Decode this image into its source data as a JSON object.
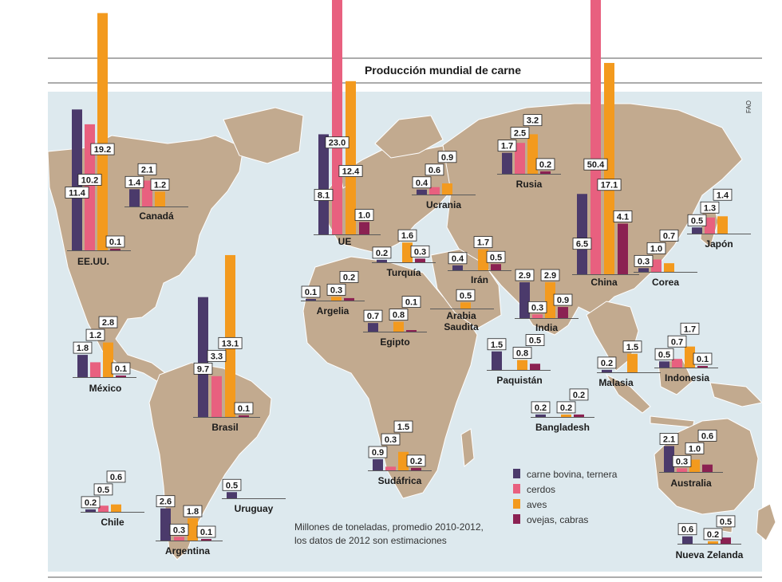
{
  "chart_data": {
    "type": "bar",
    "title": "Producción mundial de carne",
    "source": "FAO",
    "note_lines": [
      "Millones de toneladas, promedio 2010-2012,",
      "los datos de 2012 son estimaciones"
    ],
    "legend_position": "bottom-right",
    "series": [
      {
        "key": "bovina",
        "name": "carne bovina, ternera",
        "color": "#4b3a6b"
      },
      {
        "key": "cerdos",
        "name": "cerdos",
        "color": "#e8607f"
      },
      {
        "key": "aves",
        "name": "aves",
        "color": "#f39a1e"
      },
      {
        "key": "ovejas",
        "name": "ovejas, cabras",
        "color": "#8b2152"
      }
    ],
    "countries": [
      {
        "name": "EE.UU.",
        "values": [
          11.4,
          10.2,
          19.2,
          0.1
        ],
        "labels": [
          "11.4",
          "10.2",
          "19.2",
          "0.1"
        ]
      },
      {
        "name": "Canadá",
        "values": [
          1.4,
          2.1,
          1.2,
          null
        ],
        "labels": [
          "1.4",
          "2.1",
          "1.2",
          ""
        ]
      },
      {
        "name": "México",
        "values": [
          1.8,
          1.2,
          2.8,
          0.1
        ],
        "labels": [
          "1.8",
          "1.2",
          "2.8",
          "0.1"
        ]
      },
      {
        "name": "Brasil",
        "values": [
          9.7,
          3.3,
          13.1,
          0.1
        ],
        "labels": [
          "9.7",
          "3.3",
          "13.1",
          "0.1"
        ]
      },
      {
        "name": "Uruguay",
        "values": [
          0.5,
          null,
          null,
          null
        ],
        "labels": [
          "0.5",
          "",
          "",
          ""
        ]
      },
      {
        "name": "Chile",
        "values": [
          0.2,
          0.5,
          0.6,
          null
        ],
        "labels": [
          "0.2",
          "0.5",
          "0.6",
          ""
        ]
      },
      {
        "name": "Argentina",
        "values": [
          2.6,
          0.3,
          1.8,
          0.1
        ],
        "labels": [
          "2.6",
          "0.3",
          "1.8",
          "0.1"
        ]
      },
      {
        "name": "UE",
        "values": [
          8.1,
          23.0,
          12.4,
          1.0
        ],
        "labels": [
          "8.1",
          "23.0",
          "12.4",
          "1.0"
        ]
      },
      {
        "name": "Ucrania",
        "values": [
          0.4,
          0.6,
          0.9,
          null
        ],
        "labels": [
          "0.4",
          "0.6",
          "0.9",
          ""
        ]
      },
      {
        "name": "Rusia",
        "values": [
          1.7,
          2.5,
          3.2,
          0.2
        ],
        "labels": [
          "1.7",
          "2.5",
          "3.2",
          "0.2"
        ]
      },
      {
        "name": "Turquía",
        "values": [
          0.2,
          null,
          1.6,
          0.3
        ],
        "labels": [
          "0.2",
          "",
          "1.6",
          "0.3"
        ]
      },
      {
        "name": "Argelia",
        "values": [
          0.1,
          null,
          0.3,
          0.2
        ],
        "labels": [
          "0.1",
          "",
          "0.3",
          "0.2"
        ]
      },
      {
        "name": "Egipto",
        "values": [
          0.7,
          null,
          0.8,
          0.1
        ],
        "labels": [
          "0.7",
          "",
          "0.8",
          "0.1"
        ]
      },
      {
        "name": "Irán",
        "values": [
          0.4,
          null,
          1.7,
          0.5
        ],
        "labels": [
          "0.4",
          "",
          "1.7",
          "0.5"
        ]
      },
      {
        "name": "Arabia Saudita",
        "values": [
          null,
          null,
          0.5,
          null
        ],
        "labels": [
          "",
          "",
          "0.5",
          ""
        ]
      },
      {
        "name": "India",
        "values": [
          2.9,
          0.3,
          2.9,
          0.9
        ],
        "labels": [
          "2.9",
          "0.3",
          "2.9",
          "0.9"
        ]
      },
      {
        "name": "Paquistán",
        "values": [
          1.5,
          null,
          0.8,
          0.5
        ],
        "labels": [
          "1.5",
          "",
          "0.8",
          "0.5"
        ]
      },
      {
        "name": "Bangladesh",
        "values": [
          0.2,
          null,
          0.2,
          0.2
        ],
        "labels": [
          "0.2",
          "",
          "0.2",
          "0.2"
        ]
      },
      {
        "name": "China",
        "values": [
          6.5,
          50.4,
          17.1,
          4.1
        ],
        "labels": [
          "6.5",
          "50.4",
          "17.1",
          "4.1"
        ]
      },
      {
        "name": "Corea",
        "values": [
          0.3,
          1.0,
          0.7,
          null
        ],
        "labels": [
          "0.3",
          "1.0",
          "0.7",
          ""
        ]
      },
      {
        "name": "Japón",
        "values": [
          0.5,
          1.3,
          1.4,
          null
        ],
        "labels": [
          "0.5",
          "1.3",
          "1.4",
          ""
        ]
      },
      {
        "name": "Malasia",
        "values": [
          0.2,
          null,
          1.5,
          null
        ],
        "labels": [
          "0.2",
          "",
          "1.5",
          ""
        ]
      },
      {
        "name": "Indonesia",
        "values": [
          0.5,
          0.7,
          1.7,
          0.1
        ],
        "labels": [
          "0.5",
          "0.7",
          "1.7",
          "0.1"
        ]
      },
      {
        "name": "Sudáfrica",
        "values": [
          0.9,
          0.3,
          1.5,
          0.2
        ],
        "labels": [
          "0.9",
          "0.3",
          "1.5",
          "0.2"
        ]
      },
      {
        "name": "Australia",
        "values": [
          2.1,
          0.3,
          1.0,
          0.6
        ],
        "labels": [
          "2.1",
          "0.3",
          "1.0",
          "0.6"
        ]
      },
      {
        "name": "Nueva Zelanda",
        "values": [
          0.6,
          null,
          0.2,
          0.5
        ],
        "labels": [
          "0.6",
          "",
          "0.2",
          "0.5"
        ]
      }
    ]
  },
  "colors": {
    "ocean": "#dde9ee",
    "land": "#c2aa8f",
    "rule": "#5a5a5a"
  }
}
